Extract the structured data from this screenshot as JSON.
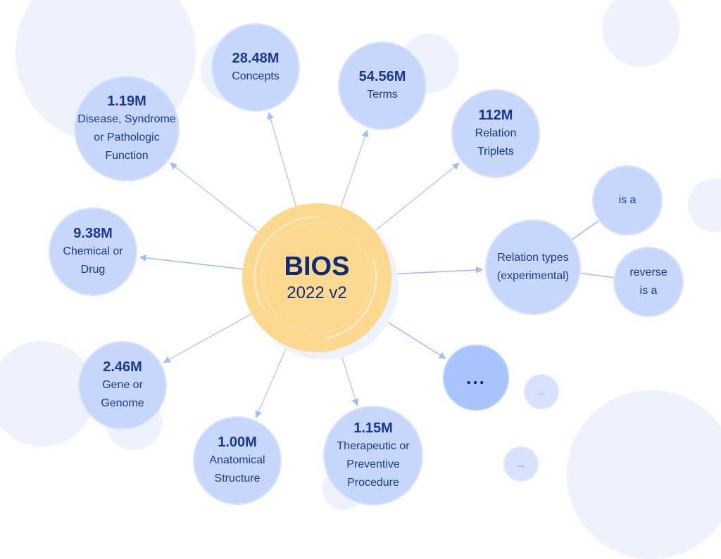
{
  "center": {
    "title": "BIOS",
    "version": "2022 v2"
  },
  "nodes": [
    {
      "id": "disease",
      "value": "1.19M",
      "label": "Disease, Syndrome\nor Pathologic\nFunction"
    },
    {
      "id": "concepts",
      "value": "28.48M",
      "label": "Concepts"
    },
    {
      "id": "terms",
      "value": "54.56M",
      "label": "Terms"
    },
    {
      "id": "relation-triplets",
      "value": "112M",
      "label": "Relation\nTriplets"
    },
    {
      "id": "chemical",
      "value": "9.38M",
      "label": "Chemical or\nDrug"
    },
    {
      "id": "relation-types",
      "value": "",
      "label": "Relation types\n(experimental)"
    },
    {
      "id": "is-a",
      "value": "",
      "label": "is a"
    },
    {
      "id": "reverse-is-a",
      "value": "",
      "label": "reverse\nis a"
    },
    {
      "id": "more",
      "value": "",
      "label": "..."
    },
    {
      "id": "more-small-1",
      "value": "",
      "label": "..."
    },
    {
      "id": "more-small-2",
      "value": "",
      "label": "..."
    },
    {
      "id": "gene",
      "value": "2.46M",
      "label": "Gene or\nGenome"
    },
    {
      "id": "anatomical",
      "value": "1.00M",
      "label": "Anatomical\nStructure"
    },
    {
      "id": "therapeutic",
      "value": "1.15M",
      "label": "Therapeutic or\nPreventive\nProcedure"
    }
  ],
  "colors": {
    "node": "#c6d7fb",
    "center": "#fcd98f",
    "text": "#1c3a8c",
    "arrow": "#a3bdf5",
    "line": "#c9cdd6"
  }
}
